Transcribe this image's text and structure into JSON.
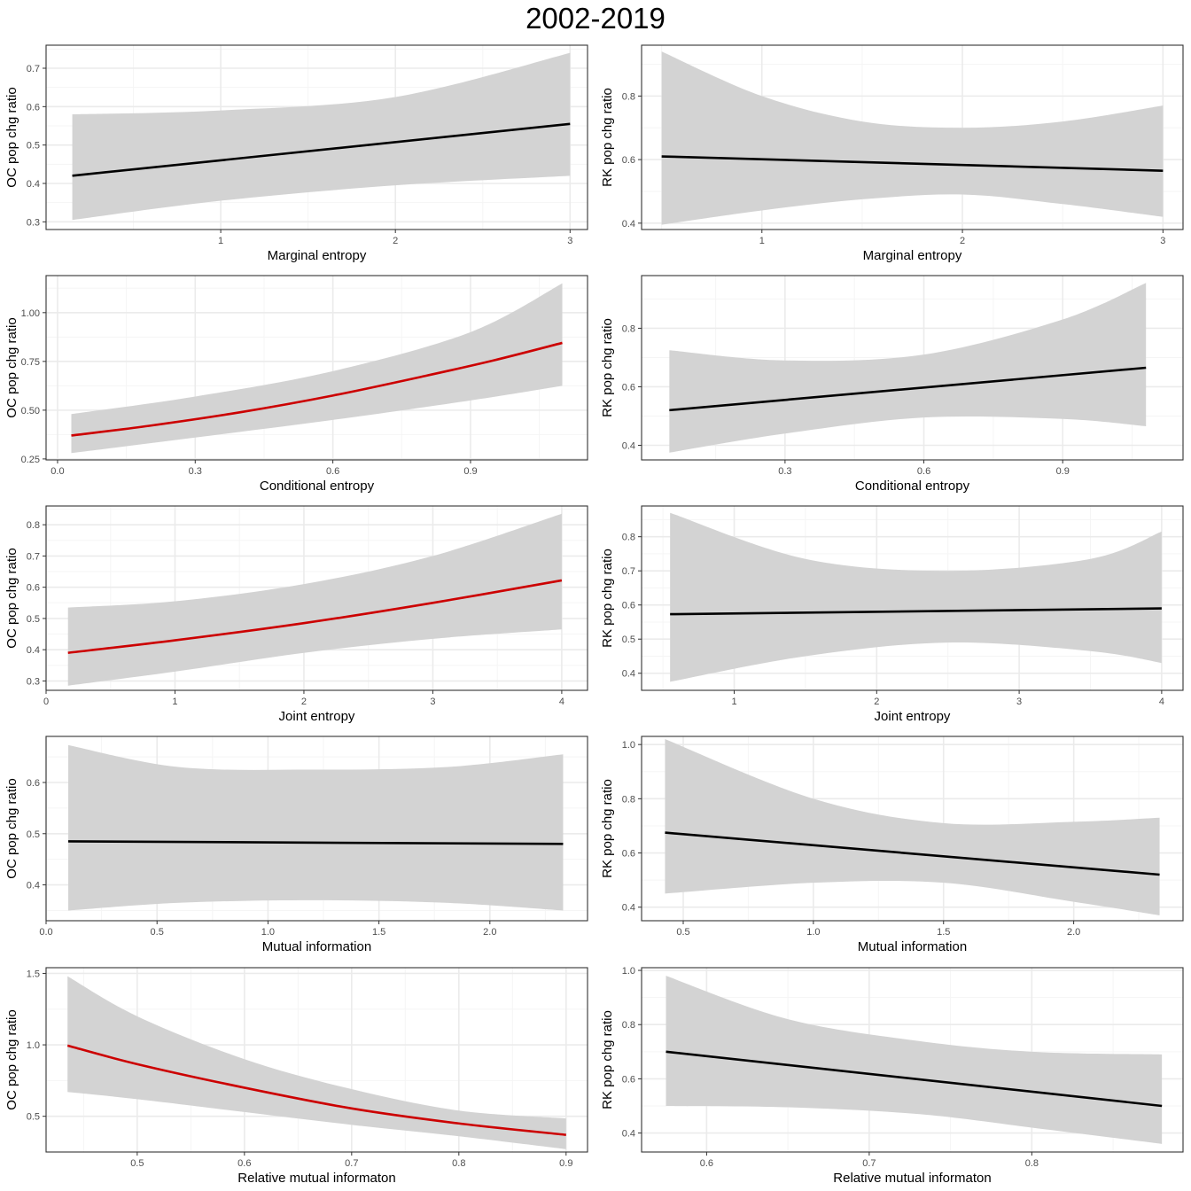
{
  "title": "2002-2019",
  "colors": {
    "band": "#d3d3d3",
    "line_black": "#000000",
    "line_red": "#cc0000",
    "grid_major": "#ebebeb",
    "grid_minor": "#f5f5f5",
    "panel_border": "#333333"
  },
  "chart_data": [
    {
      "type": "line",
      "id": "oc-marginal",
      "xlabel": "Marginal entropy",
      "ylabel": "OC pop chg ratio",
      "line_color": "black",
      "xlim": [
        0.0,
        3.1
      ],
      "ylim": [
        0.28,
        0.76
      ],
      "xticks": [
        1,
        2,
        3
      ],
      "yticks": [
        0.3,
        0.4,
        0.5,
        0.6,
        0.7
      ],
      "xtick_labels": [
        "1",
        "2",
        "3"
      ],
      "ytick_labels": [
        "0.3",
        "0.4",
        "0.5",
        "0.6",
        "0.7"
      ],
      "fit": {
        "x": [
          0.15,
          3.0
        ],
        "y": [
          0.42,
          0.555
        ]
      },
      "band": {
        "x": [
          0.15,
          1.0,
          2.0,
          3.0
        ],
        "lower": [
          0.305,
          0.355,
          0.395,
          0.42
        ],
        "upper": [
          0.58,
          0.59,
          0.625,
          0.74
        ]
      }
    },
    {
      "type": "line",
      "id": "rk-marginal",
      "xlabel": "Marginal entropy",
      "ylabel": "RK pop chg ratio",
      "line_color": "black",
      "xlim": [
        0.4,
        3.1
      ],
      "ylim": [
        0.38,
        0.96
      ],
      "xticks": [
        1,
        2,
        3
      ],
      "yticks": [
        0.4,
        0.6,
        0.8
      ],
      "xtick_labels": [
        "1",
        "2",
        "3"
      ],
      "ytick_labels": [
        "0.4",
        "0.6",
        "0.8"
      ],
      "fit": {
        "x": [
          0.5,
          3.0
        ],
        "y": [
          0.61,
          0.565
        ]
      },
      "band": {
        "x": [
          0.5,
          1.0,
          1.5,
          2.0,
          2.5,
          3.0
        ],
        "lower": [
          0.395,
          0.44,
          0.475,
          0.49,
          0.46,
          0.42
        ],
        "upper": [
          0.94,
          0.8,
          0.72,
          0.7,
          0.72,
          0.77
        ]
      }
    },
    {
      "type": "line",
      "id": "oc-conditional",
      "xlabel": "Conditional entropy",
      "ylabel": "OC pop chg ratio",
      "line_color": "red",
      "xlim": [
        -0.025,
        1.155
      ],
      "ylim": [
        0.245,
        1.19
      ],
      "xticks": [
        0.0,
        0.3,
        0.6,
        0.9
      ],
      "yticks": [
        0.25,
        0.5,
        0.75,
        1.0
      ],
      "xtick_labels": [
        "0.0",
        "0.3",
        "0.6",
        "0.9"
      ],
      "ytick_labels": [
        "0.25",
        "0.50",
        "0.75",
        "1.00"
      ],
      "fit": {
        "x": [
          0.03,
          0.2,
          0.4,
          0.6,
          0.8,
          0.95,
          1.1
        ],
        "y": [
          0.37,
          0.42,
          0.49,
          0.575,
          0.675,
          0.755,
          0.845
        ]
      },
      "band": {
        "x": [
          0.03,
          0.3,
          0.6,
          0.9,
          1.1
        ],
        "lower": [
          0.28,
          0.36,
          0.45,
          0.55,
          0.625
        ],
        "upper": [
          0.48,
          0.57,
          0.7,
          0.9,
          1.15
        ]
      }
    },
    {
      "type": "line",
      "id": "rk-conditional",
      "xlabel": "Conditional entropy",
      "ylabel": "RK pop chg ratio",
      "line_color": "black",
      "xlim": [
        -0.01,
        1.16
      ],
      "ylim": [
        0.35,
        0.98
      ],
      "xticks": [
        0.3,
        0.6,
        0.9
      ],
      "yticks": [
        0.4,
        0.6,
        0.8
      ],
      "xtick_labels": [
        "0.3",
        "0.6",
        "0.9"
      ],
      "ytick_labels": [
        "0.4",
        "0.6",
        "0.8"
      ],
      "fit": {
        "x": [
          0.05,
          1.08
        ],
        "y": [
          0.52,
          0.665
        ]
      },
      "band": {
        "x": [
          0.05,
          0.3,
          0.6,
          0.9,
          1.08
        ],
        "lower": [
          0.375,
          0.44,
          0.495,
          0.49,
          0.465
        ],
        "upper": [
          0.725,
          0.69,
          0.71,
          0.83,
          0.955
        ]
      }
    },
    {
      "type": "line",
      "id": "oc-joint",
      "xlabel": "Joint entropy",
      "ylabel": "OC pop chg ratio",
      "line_color": "red",
      "xlim": [
        0.0,
        4.2
      ],
      "ylim": [
        0.27,
        0.86
      ],
      "xticks": [
        0,
        1,
        2,
        3,
        4
      ],
      "yticks": [
        0.3,
        0.4,
        0.5,
        0.6,
        0.7,
        0.8
      ],
      "xtick_labels": [
        "0",
        "1",
        "2",
        "3",
        "4"
      ],
      "ytick_labels": [
        "0.3",
        "0.4",
        "0.5",
        "0.6",
        "0.7",
        "0.8"
      ],
      "fit": {
        "x": [
          0.17,
          1.0,
          2.0,
          3.0,
          4.0
        ],
        "y": [
          0.39,
          0.43,
          0.485,
          0.55,
          0.622
        ]
      },
      "band": {
        "x": [
          0.17,
          1.0,
          2.0,
          3.0,
          4.0
        ],
        "lower": [
          0.285,
          0.33,
          0.39,
          0.435,
          0.465
        ],
        "upper": [
          0.535,
          0.555,
          0.61,
          0.7,
          0.835
        ]
      }
    },
    {
      "type": "line",
      "id": "rk-joint",
      "xlabel": "Joint entropy",
      "ylabel": "RK pop chg ratio",
      "line_color": "black",
      "xlim": [
        0.35,
        4.15
      ],
      "ylim": [
        0.35,
        0.89
      ],
      "xticks": [
        1,
        2,
        3,
        4
      ],
      "yticks": [
        0.4,
        0.5,
        0.6,
        0.7,
        0.8
      ],
      "xtick_labels": [
        "1",
        "2",
        "3",
        "4"
      ],
      "ytick_labels": [
        "0.4",
        "0.5",
        "0.6",
        "0.7",
        "0.8"
      ],
      "fit": {
        "x": [
          0.55,
          4.0
        ],
        "y": [
          0.573,
          0.59
        ]
      },
      "band": {
        "x": [
          0.55,
          1.5,
          2.5,
          3.5,
          4.0
        ],
        "lower": [
          0.375,
          0.45,
          0.49,
          0.465,
          0.43
        ],
        "upper": [
          0.87,
          0.735,
          0.7,
          0.735,
          0.815
        ]
      }
    },
    {
      "type": "line",
      "id": "oc-mutual",
      "xlabel": "Mutual information",
      "ylabel": "OC pop chg ratio",
      "line_color": "black",
      "xlim": [
        0.0,
        2.44
      ],
      "ylim": [
        0.33,
        0.69
      ],
      "xticks": [
        0.0,
        0.5,
        1.0,
        1.5,
        2.0
      ],
      "yticks": [
        0.4,
        0.5,
        0.6
      ],
      "xtick_labels": [
        "0.0",
        "0.5",
        "1.0",
        "1.5",
        "2.0"
      ],
      "ytick_labels": [
        "0.4",
        "0.5",
        "0.6"
      ],
      "fit": {
        "x": [
          0.1,
          2.33
        ],
        "y": [
          0.485,
          0.48
        ]
      },
      "band": {
        "x": [
          0.1,
          0.6,
          1.2,
          1.8,
          2.33
        ],
        "lower": [
          0.35,
          0.365,
          0.37,
          0.365,
          0.35
        ],
        "upper": [
          0.673,
          0.63,
          0.625,
          0.63,
          0.655
        ]
      }
    },
    {
      "type": "line",
      "id": "rk-mutual",
      "xlabel": "Mutual information",
      "ylabel": "RK pop chg ratio",
      "line_color": "black",
      "xlim": [
        0.34,
        2.42
      ],
      "ylim": [
        0.35,
        1.03
      ],
      "xticks": [
        0.5,
        1.0,
        1.5,
        2.0
      ],
      "yticks": [
        0.4,
        0.6,
        0.8,
        1.0
      ],
      "xtick_labels": [
        "0.5",
        "1.0",
        "1.5",
        "2.0"
      ],
      "ytick_labels": [
        "0.4",
        "0.6",
        "0.8",
        "1.0"
      ],
      "fit": {
        "x": [
          0.43,
          2.33
        ],
        "y": [
          0.675,
          0.52
        ]
      },
      "band": {
        "x": [
          0.43,
          1.0,
          1.5,
          2.0,
          2.33
        ],
        "lower": [
          0.45,
          0.49,
          0.49,
          0.42,
          0.37
        ],
        "upper": [
          1.02,
          0.8,
          0.71,
          0.715,
          0.73
        ]
      }
    },
    {
      "type": "line",
      "id": "oc-relative",
      "xlabel": "Relative mutual informaton",
      "ylabel": "OC pop chg ratio",
      "line_color": "red",
      "xlim": [
        0.415,
        0.92
      ],
      "ylim": [
        0.25,
        1.54
      ],
      "xticks": [
        0.5,
        0.6,
        0.7,
        0.8,
        0.9
      ],
      "yticks": [
        0.5,
        1.0,
        1.5
      ],
      "xtick_labels": [
        "0.5",
        "0.6",
        "0.7",
        "0.8",
        "0.9"
      ],
      "ytick_labels": [
        "0.5",
        "1.0",
        "1.5"
      ],
      "fit": {
        "x": [
          0.435,
          0.5,
          0.6,
          0.7,
          0.8,
          0.9
        ],
        "y": [
          0.995,
          0.865,
          0.7,
          0.555,
          0.45,
          0.37
        ]
      },
      "band": {
        "x": [
          0.435,
          0.5,
          0.6,
          0.7,
          0.8,
          0.9
        ],
        "lower": [
          0.67,
          0.62,
          0.53,
          0.44,
          0.36,
          0.27
        ],
        "upper": [
          1.48,
          1.2,
          0.9,
          0.69,
          0.54,
          0.485
        ]
      }
    },
    {
      "type": "line",
      "id": "rk-relative",
      "xlabel": "Relative mutual informaton",
      "ylabel": "RK pop chg ratio",
      "line_color": "black",
      "xlim": [
        0.56,
        0.893
      ],
      "ylim": [
        0.33,
        1.01
      ],
      "xticks": [
        0.6,
        0.7,
        0.8
      ],
      "yticks": [
        0.4,
        0.6,
        0.8,
        1.0
      ],
      "xtick_labels": [
        "0.6",
        "0.7",
        "0.8"
      ],
      "ytick_labels": [
        "0.4",
        "0.6",
        "0.8",
        "1.0"
      ],
      "fit": {
        "x": [
          0.575,
          0.88
        ],
        "y": [
          0.7,
          0.5
        ]
      },
      "band": {
        "x": [
          0.575,
          0.65,
          0.73,
          0.8,
          0.88
        ],
        "lower": [
          0.5,
          0.495,
          0.47,
          0.42,
          0.36
        ],
        "upper": [
          0.98,
          0.82,
          0.74,
          0.7,
          0.69
        ]
      }
    }
  ]
}
